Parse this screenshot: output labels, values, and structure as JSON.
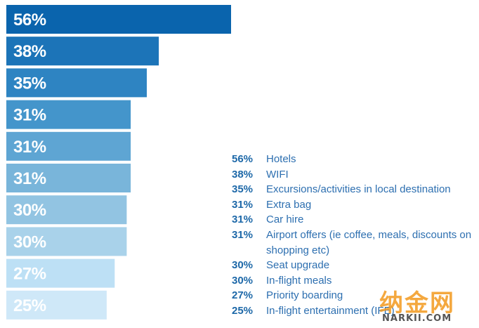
{
  "chart_data": {
    "type": "bar",
    "orientation": "horizontal",
    "categories": [
      "Hotels",
      "WIFI",
      "Excursions/activities in local destination",
      "Extra bag",
      "Car hire",
      "Airport offers (ie coffee, meals, discounts on shopping etc)",
      "Seat upgrade",
      "In-flight meals",
      "Priority boarding",
      "In-flight entertainment (IFE)"
    ],
    "values": [
      56,
      38,
      35,
      31,
      31,
      31,
      30,
      30,
      27,
      25
    ],
    "value_labels": [
      "56%",
      "38%",
      "35%",
      "31%",
      "31%",
      "31%",
      "30%",
      "30%",
      "27%",
      "25%"
    ],
    "colors": [
      "#0a64ad",
      "#1c74b8",
      "#2e84c2",
      "#4495cb",
      "#5ea5d3",
      "#79b5da",
      "#92c4e2",
      "#a9d2ea",
      "#bde0f5",
      "#cfe8f8"
    ],
    "label_colors": [
      "#ffffff",
      "#ffffff",
      "#ffffff",
      "#ffffff",
      "#ffffff",
      "#ffffff",
      "#ffffff",
      "#ffffff",
      "#ffffff",
      "#ffffff"
    ],
    "xlim": [
      0,
      56
    ],
    "grid": false,
    "legend_position": "bottom-right"
  },
  "legend": {
    "items": [
      {
        "pct": "56%",
        "label": "Hotels"
      },
      {
        "pct": "38%",
        "label": "WIFI"
      },
      {
        "pct": "35%",
        "label": "Excursions/activities in local destination"
      },
      {
        "pct": "31%",
        "label": "Extra bag"
      },
      {
        "pct": "31%",
        "label": "Car hire"
      },
      {
        "pct": "31%",
        "label": "Airport offers (ie coffee, meals, discounts on shopping etc)"
      },
      {
        "pct": "30%",
        "label": "Seat upgrade"
      },
      {
        "pct": "30%",
        "label": "In-flight meals"
      },
      {
        "pct": "27%",
        "label": "Priority boarding"
      },
      {
        "pct": "25%",
        "label": "In-flight entertainment (IFE)"
      }
    ]
  },
  "watermark": {
    "chars": "纳金网",
    "site": "NARKII.COM"
  }
}
